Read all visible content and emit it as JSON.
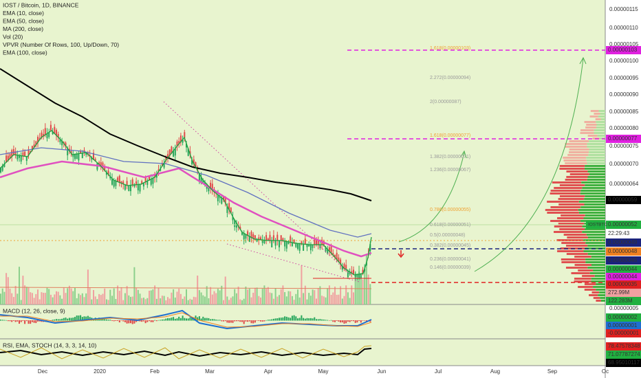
{
  "legend": [
    "IOST / Bitcoin, 1D, BINANCE",
    "EMA (10, close)",
    "EMA (50, close)",
    "MA (200, close)",
    "Vol (20)",
    "VPVR (Number Of Rows, 100, Up/Down, 70)",
    "EMA (100, close)"
  ],
  "price_axis": [
    "0.00000115",
    "0.00000110",
    "0.00000105",
    "0.00000100",
    "0.00000095",
    "0.00000090",
    "0.00000085",
    "0.00000080",
    "0.00000075",
    "0.00000070",
    "0.00000064"
  ],
  "price_badges": [
    "0.00000103",
    "0.00000077",
    "0.00000059",
    "0.00000052",
    "22:29:43",
    "0.00000049",
    "0.00000048",
    "0.00000045",
    "0.00000044",
    "0.00000044",
    "0.00000035",
    "272.99M",
    "122.283M"
  ],
  "symbol_badge": "IOSTBTC",
  "fib_labels": [
    "1.618(0.00000103)",
    "2.272(0.00000094)",
    "2(0.00000087)",
    "1.618(0.00000077)",
    "1.382(0.00000071)",
    "1.236(0.00000067)",
    "0.786(0.00000055)",
    "0.618(0.00000051)",
    "0.5(0.00000048)",
    "0.382(0.00000045)",
    "0.236(0.00000041)",
    "0.146(0.00000039)"
  ],
  "macd": {
    "title": "MACD (12, 26, close, 9)",
    "axis": "0.00000005",
    "badges": [
      "0.00000002",
      "0.00000001",
      "-0.00000001"
    ]
  },
  "rsi": {
    "title": "RSI, EMA, STOCH (14, 3, 3, 14, 10)",
    "badges": [
      "78.47578348",
      "71.07787274",
      "68.95010117"
    ]
  },
  "time_axis": [
    "Dec",
    "2020",
    "Feb",
    "Mar",
    "Apr",
    "May",
    "Jun",
    "Jul",
    "Aug",
    "Sep",
    "Oc"
  ]
}
